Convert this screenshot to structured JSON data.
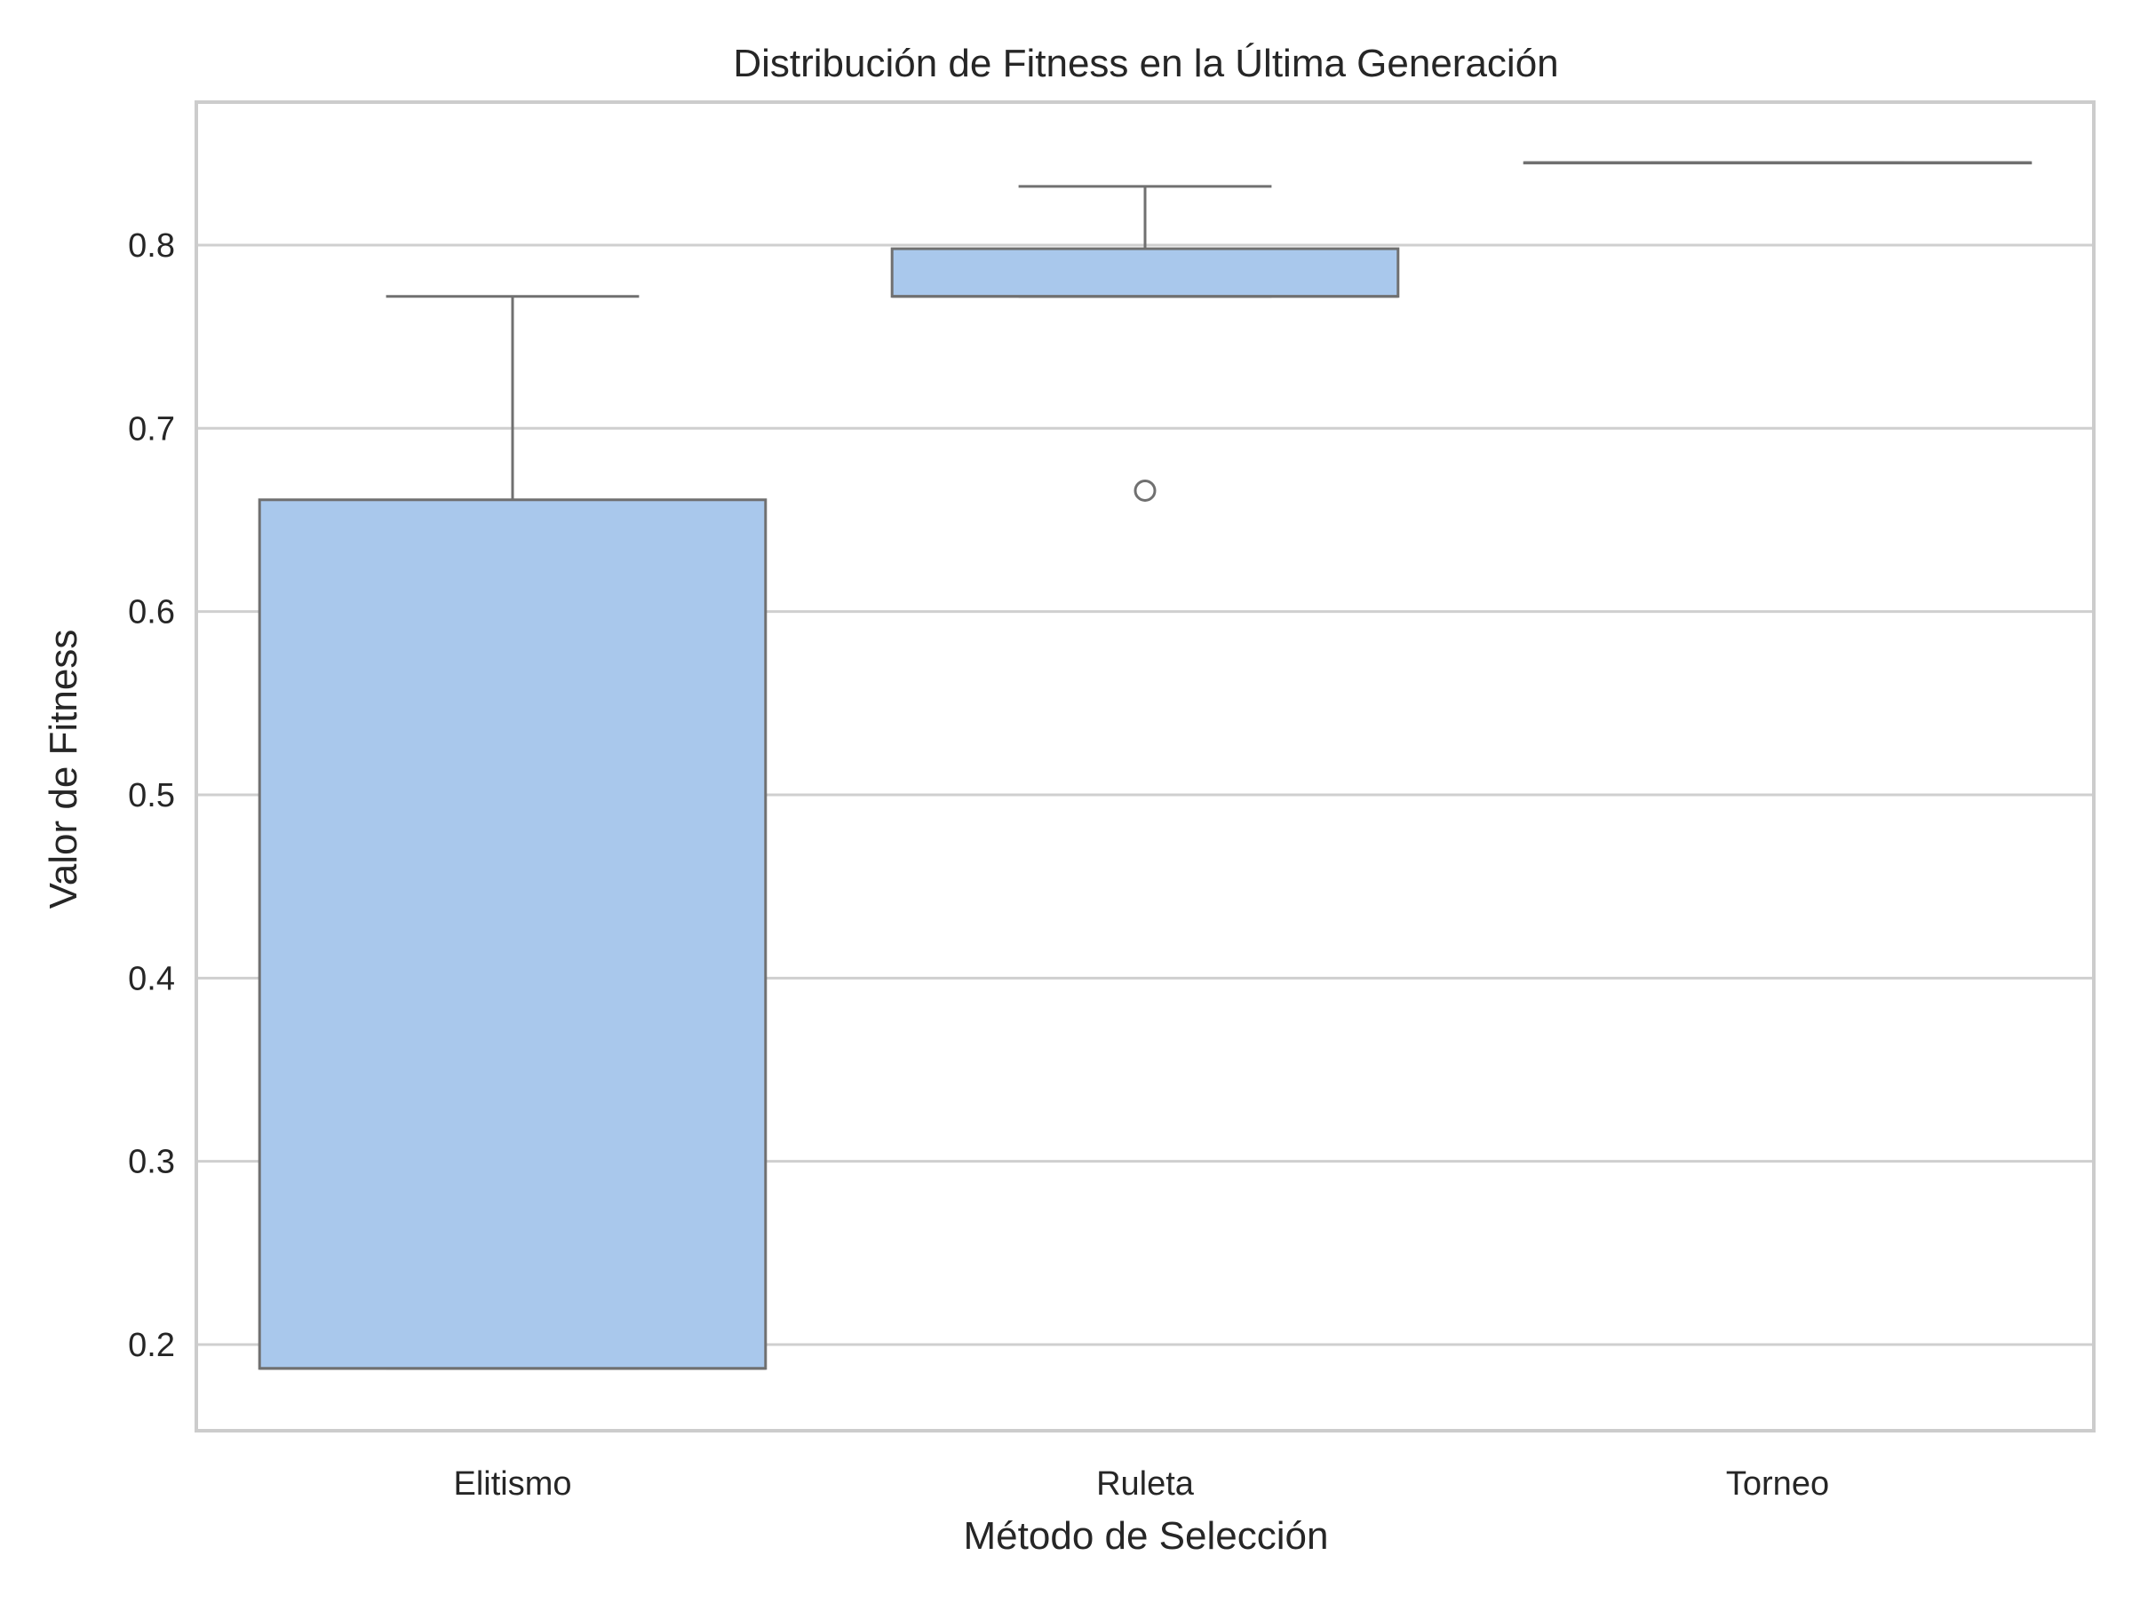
{
  "chart_data": {
    "type": "box",
    "title": "Distribución de Fitness en la Última Generación",
    "xlabel": "Método de Selección",
    "ylabel": "Valor de Fitness",
    "ylim": [
      0.153,
      0.878
    ],
    "yticks": [
      0.2,
      0.3,
      0.4,
      0.5,
      0.6,
      0.7,
      0.8
    ],
    "grid": "horizontal",
    "categories": [
      "Elitismo",
      "Ruleta",
      "Torneo"
    ],
    "boxes": [
      {
        "category": "Elitismo",
        "whisker_low": 0.187,
        "q1": 0.187,
        "median": 0.187,
        "q3": 0.661,
        "whisker_high": 0.772,
        "outliers": []
      },
      {
        "category": "Ruleta",
        "whisker_low": 0.772,
        "q1": 0.772,
        "median": 0.772,
        "q3": 0.798,
        "whisker_high": 0.832,
        "outliers": [
          0.666
        ]
      },
      {
        "category": "Torneo",
        "whisker_low": 0.845,
        "q1": 0.845,
        "median": 0.845,
        "q3": 0.845,
        "whisker_high": 0.845,
        "outliers": []
      }
    ],
    "colors": {
      "box_fill": "#a9c8ec",
      "box_edge": "#707070",
      "grid": "#cfcfcf",
      "spine": "#cccccc"
    }
  }
}
